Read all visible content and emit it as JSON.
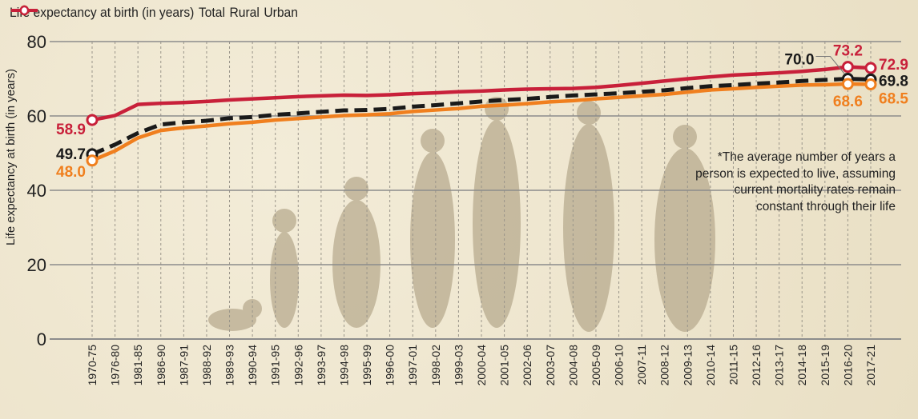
{
  "chart_data": {
    "type": "line",
    "title": "Life expectancy at birth (in years)",
    "xlabel": "",
    "ylabel": "Life expectancy at birth (in years)",
    "ylim": [
      0,
      80
    ],
    "yticks": [
      0,
      20,
      40,
      60,
      80
    ],
    "grid": true,
    "legend_position": "top",
    "categories": [
      "1970-75",
      "1976-80",
      "1981-85",
      "1986-90",
      "1987-91",
      "1988-92",
      "1989-93",
      "1990-94",
      "1991-95",
      "1992-96",
      "1993-97",
      "1994-98",
      "1995-99",
      "1996-00",
      "1997-01",
      "1998-02",
      "1999-03",
      "2000-04",
      "2001-05",
      "2002-06",
      "2003-07",
      "2004-08",
      "2005-09",
      "2006-10",
      "2007-11",
      "2008-12",
      "2009-13",
      "2010-14",
      "2011-15",
      "2012-16",
      "2013-17",
      "2014-18",
      "2015-19",
      "2016-20",
      "2017-21"
    ],
    "series": [
      {
        "name": "Total",
        "color": "#1a1a1a",
        "dashed": true,
        "values": [
          49.7,
          52.3,
          55.4,
          57.7,
          58.3,
          58.7,
          59.4,
          59.7,
          60.3,
          60.7,
          61.1,
          61.5,
          61.6,
          61.9,
          62.5,
          62.9,
          63.4,
          63.9,
          64.3,
          64.6,
          65.1,
          65.5,
          65.8,
          66.1,
          66.5,
          66.9,
          67.5,
          68.0,
          68.3,
          68.7,
          69.0,
          69.4,
          69.7,
          70.0,
          69.8
        ]
      },
      {
        "name": "Rural",
        "color": "#f07f1e",
        "dashed": false,
        "values": [
          48.0,
          50.6,
          54.1,
          56.1,
          56.8,
          57.3,
          57.9,
          58.3,
          58.9,
          59.3,
          59.7,
          60.1,
          60.3,
          60.6,
          61.2,
          61.6,
          62.0,
          62.6,
          62.9,
          63.3,
          63.8,
          64.1,
          64.6,
          65.0,
          65.4,
          65.8,
          66.4,
          67.0,
          67.3,
          67.7,
          68.0,
          68.3,
          68.4,
          68.6,
          68.5
        ]
      },
      {
        "name": "Urban",
        "color": "#c8203a",
        "dashed": false,
        "values": [
          58.9,
          60.1,
          63.1,
          63.4,
          63.6,
          63.9,
          64.3,
          64.6,
          64.9,
          65.2,
          65.4,
          65.6,
          65.5,
          65.7,
          66.0,
          66.2,
          66.5,
          66.7,
          67.0,
          67.2,
          67.3,
          67.4,
          67.7,
          68.2,
          68.8,
          69.4,
          70.0,
          70.5,
          71.0,
          71.3,
          71.6,
          72.0,
          72.5,
          73.2,
          72.9
        ]
      }
    ],
    "data_labels": [
      {
        "series": "Urban",
        "category": "1970-75",
        "text": "58.9"
      },
      {
        "series": "Total",
        "category": "1970-75",
        "text": "49.7"
      },
      {
        "series": "Rural",
        "category": "1970-75",
        "text": "48.0"
      },
      {
        "series": "Total",
        "category": "2016-20",
        "text": "70.0"
      },
      {
        "series": "Urban",
        "category": "2016-20",
        "text": "73.2"
      },
      {
        "series": "Rural",
        "category": "2016-20",
        "text": "68.6"
      },
      {
        "series": "Urban",
        "category": "2017-21",
        "text": "72.9"
      },
      {
        "series": "Total",
        "category": "2017-21",
        "text": "69.8"
      },
      {
        "series": "Rural",
        "category": "2017-21",
        "text": "68.5"
      }
    ],
    "annotation": "*The average number of years a person is expected to live, assuming current mortality rates remain constant through their life"
  }
}
